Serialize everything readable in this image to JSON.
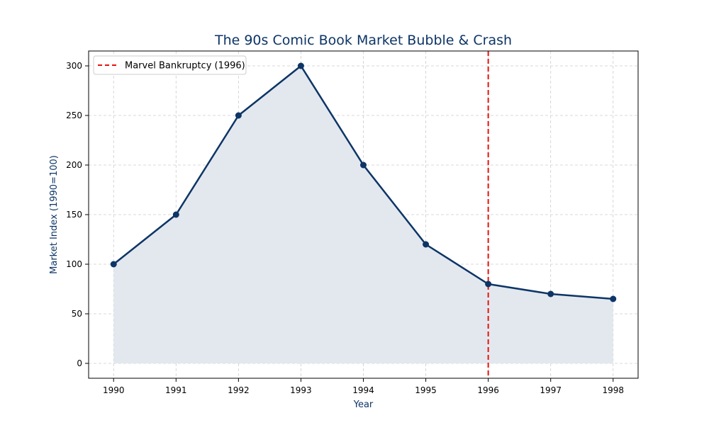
{
  "chart_data": {
    "type": "line",
    "title": "The 90s Comic Book Market Bubble & Crash",
    "xlabel": "Year",
    "ylabel": "Market Index (1990=100)",
    "x": [
      1990,
      1991,
      1992,
      1993,
      1994,
      1995,
      1996,
      1997,
      1998
    ],
    "series": [
      {
        "values": [
          100,
          150,
          250,
          300,
          200,
          120,
          80,
          70,
          65
        ]
      }
    ],
    "xlim": [
      1989.6,
      1998.4
    ],
    "ylim": [
      -15,
      315
    ],
    "yticks": [
      0,
      50,
      100,
      150,
      200,
      250,
      300
    ],
    "xticks": [
      1990,
      1991,
      1992,
      1993,
      1994,
      1995,
      1996,
      1997,
      1998
    ],
    "area_fill": true,
    "grid": true,
    "annotations": [
      {
        "type": "vertical-line",
        "x": 1996,
        "label": "Marvel Bankruptcy (1996)",
        "style": "dashed"
      }
    ],
    "legend": {
      "position": "top-left",
      "entries": [
        "Marvel Bankruptcy (1996)"
      ]
    },
    "colors": {
      "line": "#0d3566",
      "fill": "#e3e8ee",
      "vline": "#e8120c",
      "title": "#0d3566",
      "axis_label": "#0d3566",
      "grid": "#cccccc"
    }
  }
}
